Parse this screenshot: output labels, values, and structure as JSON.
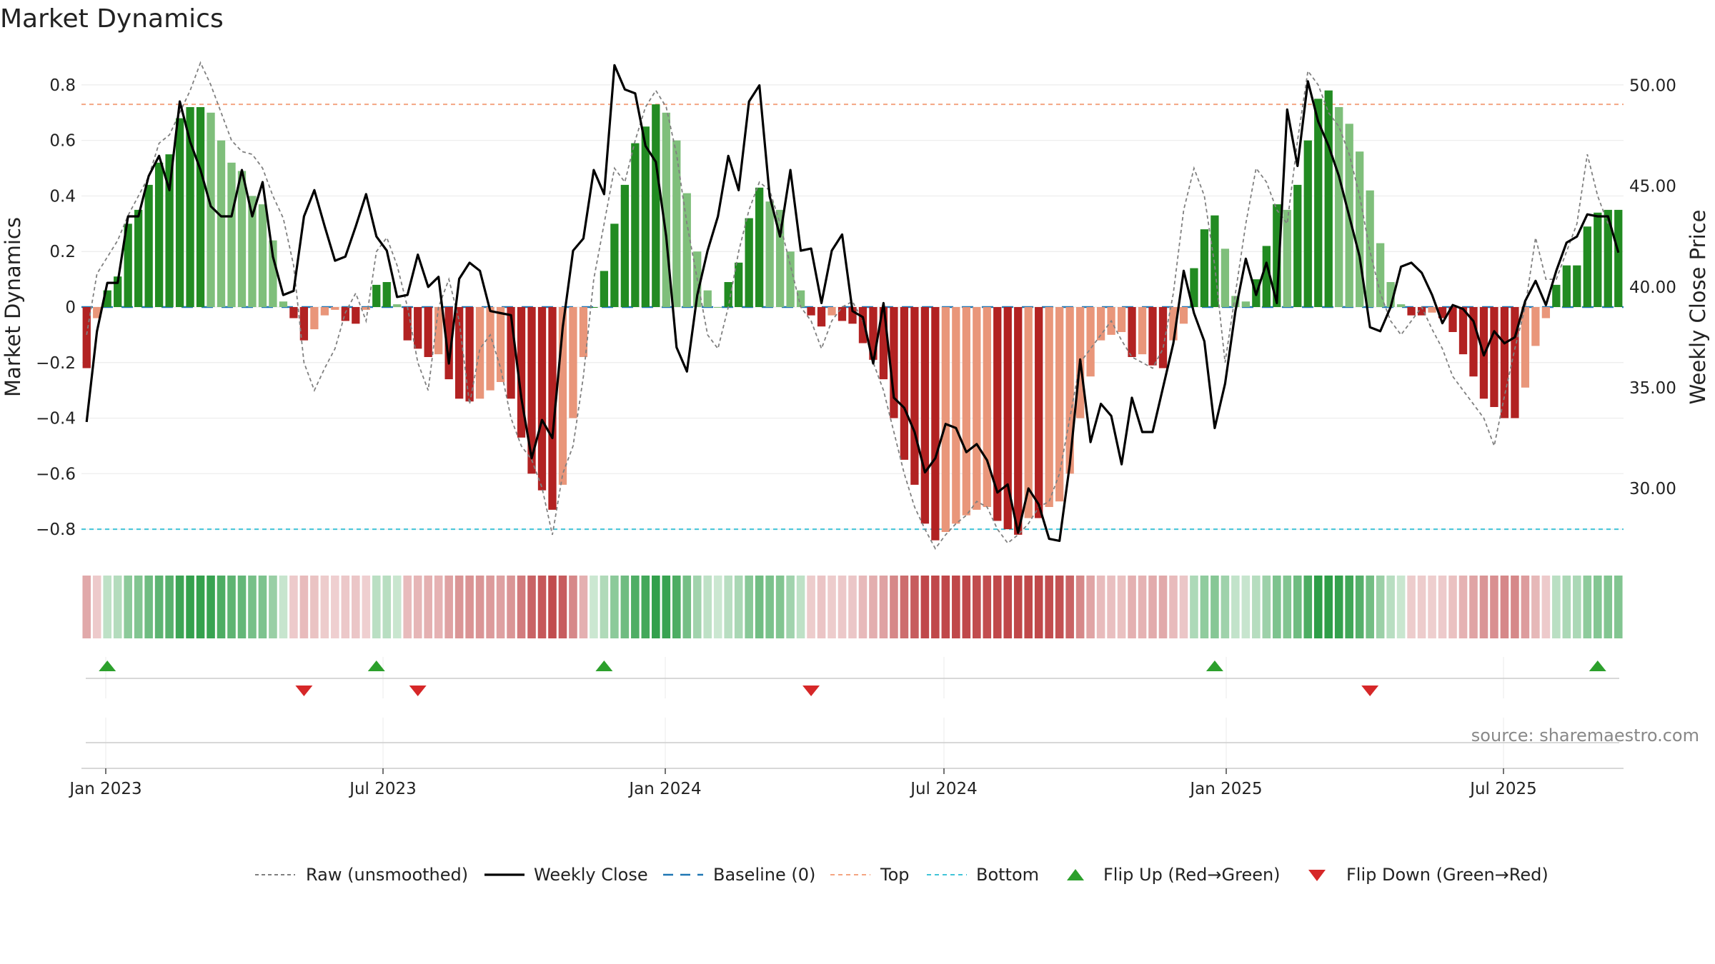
{
  "title": "Market Dynamics",
  "source": "source: sharemaestro.com",
  "colors": {
    "dark_green": "#228b22",
    "light_green": "#7fbf7b",
    "dark_red": "#b22222",
    "light_red": "#e9967a",
    "top_line": "#f4a582",
    "bottom_line": "#40c4d8",
    "baseline": "#1f77b4",
    "raw": "#808080",
    "close": "#000000",
    "flip_up": "#2ca02c",
    "flip_down": "#d62728"
  },
  "chart_data": {
    "type": "bar",
    "ylabel": "Market Dynamics",
    "y2label": "Weekly Close Price",
    "ylim": [
      -0.9,
      0.9
    ],
    "y2lim": [
      26.6,
      51.4
    ],
    "yticks": [
      0.8,
      0.6,
      0.4,
      0.2,
      0,
      -0.2,
      -0.4,
      -0.6,
      -0.8
    ],
    "ytick_labels": [
      "0.8",
      "0.6",
      "0.4",
      "0.2",
      "0",
      "−0.2",
      "−0.4",
      "−0.6",
      "−0.8"
    ],
    "y2ticks": [
      50,
      45,
      40,
      35,
      30
    ],
    "y2tick_labels": [
      "50.00",
      "45.00",
      "40.00",
      "35.00",
      "30.00"
    ],
    "xtick_labels": [
      "Jan 2023",
      "Jul 2023",
      "Jan 2024",
      "Jul 2024",
      "Jan 2025",
      "Jul 2025"
    ],
    "top_level": 0.73,
    "bottom_level": -0.8,
    "baseline": 0,
    "bars": [
      -0.22,
      -0.04,
      0.06,
      0.11,
      0.3,
      0.35,
      0.44,
      0.52,
      0.55,
      0.68,
      0.72,
      0.72,
      0.7,
      0.6,
      0.52,
      0.49,
      0.4,
      0.37,
      0.24,
      0.02,
      -0.04,
      -0.12,
      -0.08,
      -0.03,
      -0.01,
      -0.05,
      -0.06,
      -0.01,
      0.08,
      0.09,
      0.01,
      -0.12,
      -0.15,
      -0.18,
      -0.17,
      -0.26,
      -0.33,
      -0.34,
      -0.33,
      -0.3,
      -0.27,
      -0.33,
      -0.47,
      -0.6,
      -0.66,
      -0.73,
      -0.64,
      -0.4,
      -0.18,
      0,
      0.13,
      0.3,
      0.44,
      0.59,
      0.65,
      0.73,
      0.7,
      0.6,
      0.41,
      0.2,
      0.06,
      0,
      0.09,
      0.16,
      0.32,
      0.43,
      0.38,
      0.35,
      0.2,
      0.06,
      -0.03,
      -0.07,
      -0.03,
      -0.05,
      -0.06,
      -0.13,
      -0.19,
      -0.26,
      -0.4,
      -0.55,
      -0.64,
      -0.78,
      -0.84,
      -0.81,
      -0.78,
      -0.75,
      -0.73,
      -0.72,
      -0.77,
      -0.8,
      -0.82,
      -0.76,
      -0.76,
      -0.72,
      -0.7,
      -0.6,
      -0.4,
      -0.25,
      -0.12,
      -0.1,
      -0.09,
      -0.18,
      -0.17,
      -0.21,
      -0.22,
      -0.12,
      -0.06,
      0.14,
      0.28,
      0.33,
      0.21,
      0.04,
      0.02,
      0.1,
      0.22,
      0.37,
      0.35,
      0.44,
      0.6,
      0.75,
      0.78,
      0.72,
      0.66,
      0.56,
      0.42,
      0.23,
      0.09,
      0.01,
      -0.03,
      -0.03,
      -0.02,
      -0.04,
      -0.09,
      -0.17,
      -0.25,
      -0.33,
      -0.36,
      -0.4,
      -0.4,
      -0.29,
      -0.14,
      -0.04,
      0.08,
      0.15,
      0.15,
      0.29,
      0.34,
      0.35,
      0.35
    ],
    "raw": [
      -0.1,
      0.12,
      0.18,
      0.24,
      0.33,
      0.4,
      0.47,
      0.59,
      0.62,
      0.7,
      0.78,
      0.88,
      0.8,
      0.7,
      0.6,
      0.56,
      0.55,
      0.5,
      0.4,
      0.32,
      0.15,
      -0.2,
      -0.3,
      -0.22,
      -0.15,
      -0.02,
      0.05,
      -0.05,
      0.2,
      0.25,
      0.15,
      0,
      -0.2,
      -0.3,
      0,
      0.1,
      -0.05,
      -0.35,
      -0.15,
      -0.1,
      -0.22,
      -0.4,
      -0.5,
      -0.55,
      -0.65,
      -0.82,
      -0.6,
      -0.5,
      -0.25,
      0.1,
      0.3,
      0.5,
      0.45,
      0.6,
      0.72,
      0.78,
      0.72,
      0.55,
      0.3,
      0.1,
      -0.1,
      -0.15,
      0,
      0.2,
      0.35,
      0.45,
      0.42,
      0.3,
      0.15,
      0,
      -0.05,
      -0.15,
      -0.05,
      0,
      0.02,
      -0.05,
      -0.2,
      -0.3,
      -0.45,
      -0.6,
      -0.72,
      -0.8,
      -0.87,
      -0.82,
      -0.78,
      -0.75,
      -0.7,
      -0.72,
      -0.8,
      -0.85,
      -0.82,
      -0.78,
      -0.72,
      -0.7,
      -0.6,
      -0.4,
      -0.2,
      -0.15,
      -0.1,
      -0.05,
      -0.12,
      -0.18,
      -0.2,
      -0.22,
      -0.15,
      0.05,
      0.35,
      0.5,
      0.4,
      0.15,
      -0.2,
      0.05,
      0.3,
      0.5,
      0.45,
      0.35,
      0.3,
      0.6,
      0.85,
      0.8,
      0.7,
      0.65,
      0.55,
      0.4,
      0.2,
      0.05,
      -0.05,
      -0.1,
      -0.05,
      0,
      -0.08,
      -0.15,
      -0.25,
      -0.3,
      -0.35,
      -0.4,
      -0.5,
      -0.32,
      -0.15,
      0,
      0.25,
      0.1,
      0.1,
      0.2,
      0.3,
      0.55,
      0.4,
      0.3
    ],
    "close": [
      33.3,
      37.8,
      40.2,
      40.2,
      43.5,
      43.5,
      45.5,
      46.5,
      44.8,
      49.2,
      47.2,
      45.8,
      44,
      43.5,
      43.5,
      45.8,
      43.5,
      45.2,
      41.5,
      39.6,
      39.8,
      43.5,
      44.8,
      43,
      41.3,
      41.5,
      43,
      44.6,
      42.5,
      41.8,
      39.5,
      39.6,
      41.6,
      40,
      40.5,
      36.2,
      40.4,
      41.2,
      40.8,
      38.8,
      38.7,
      38.6,
      34.5,
      31.5,
      33.4,
      32.5,
      38,
      41.8,
      42.4,
      45.8,
      44.6,
      51,
      49.8,
      49.6,
      47,
      46.2,
      42.5,
      37,
      35.8,
      39.6,
      41.8,
      43.5,
      46.5,
      44.8,
      49.2,
      50,
      44.5,
      42.5,
      45.8,
      41.8,
      41.9,
      39.2,
      41.8,
      42.6,
      38.8,
      38.5,
      36.2,
      39.2,
      34.5,
      34,
      32.8,
      30.8,
      31.5,
      33.2,
      33,
      31.8,
      32.2,
      31.4,
      29.8,
      30.2,
      27.8,
      30,
      29.2,
      27.5,
      27.4,
      31.2,
      36.4,
      32.3,
      34.2,
      33.6,
      31.2,
      34.5,
      32.8,
      32.8,
      35,
      37.2,
      40.8,
      38.7,
      37.3,
      33,
      35.2,
      38.8,
      41.4,
      39.6,
      41.2,
      39.2,
      48.8,
      46,
      50.2,
      48.2,
      47,
      45.5,
      43.5,
      41.5,
      38,
      37.8,
      39,
      41,
      41.2,
      40.7,
      39.6,
      38.2,
      39.1,
      38.9,
      38.3,
      36.6,
      37.8,
      37.2,
      37.5,
      39.3,
      40.3,
      39.1,
      40.8,
      42.2,
      42.5,
      43.6,
      43.5,
      43.5,
      41.7
    ],
    "heat_strip": "sign and magnitude of bars, shaded red (negative) to green (positive)",
    "flips_up_index": [
      2,
      28,
      50,
      109,
      146
    ],
    "flips_down_index": [
      21,
      32,
      70,
      124
    ],
    "legend": {
      "placement": "bottom-center",
      "entries": [
        "Raw (unsmoothed)",
        "Weekly Close",
        "Baseline (0)",
        "Top",
        "Bottom",
        "Flip Up (Red→Green)",
        "Flip Down (Green→Red)"
      ]
    }
  }
}
